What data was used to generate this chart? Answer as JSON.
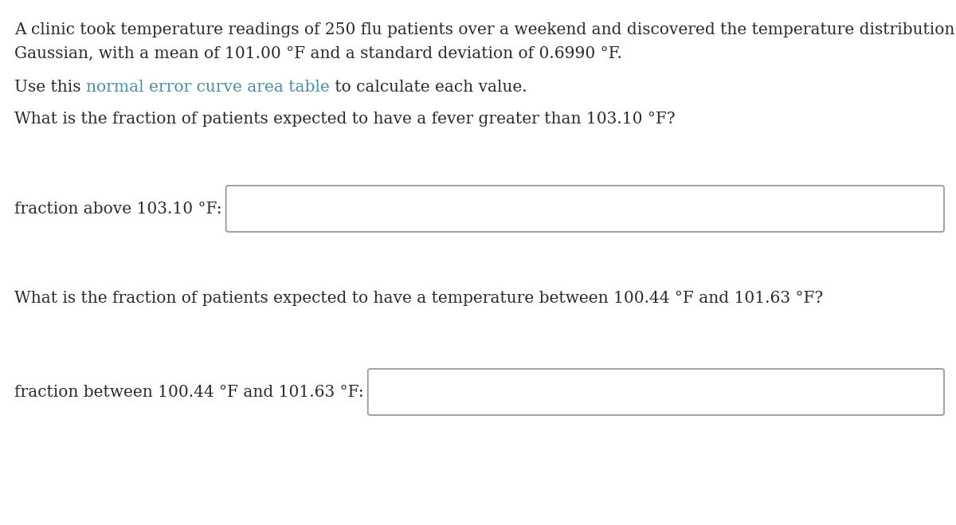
{
  "line1": "A clinic took temperature readings of 250 flu patients over a weekend and discovered the temperature distribution to be",
  "line2": "Gaussian, with a mean of 101.00 °F and a standard deviation of 0.6990 °F.",
  "line3_before": "Use this ",
  "line3_link": "normal error curve area table",
  "line3_after": " to calculate each value.",
  "question1": "What is the fraction of patients expected to have a fever greater than 103.10 °F?",
  "label1": "fraction above 103.10 °F:",
  "question2": "What is the fraction of patients expected to have a temperature between 100.44 °F and 101.63 °F?",
  "label2": "fraction between 100.44 °F and 101.63 °F:",
  "text_color": "#2b2b2b",
  "link_color": "#4a90a4",
  "box_edge_color": "#999999",
  "background_color": "#ffffff",
  "font_size": 14.5,
  "fig_width": 12.0,
  "fig_height": 6.59,
  "dpi": 100
}
